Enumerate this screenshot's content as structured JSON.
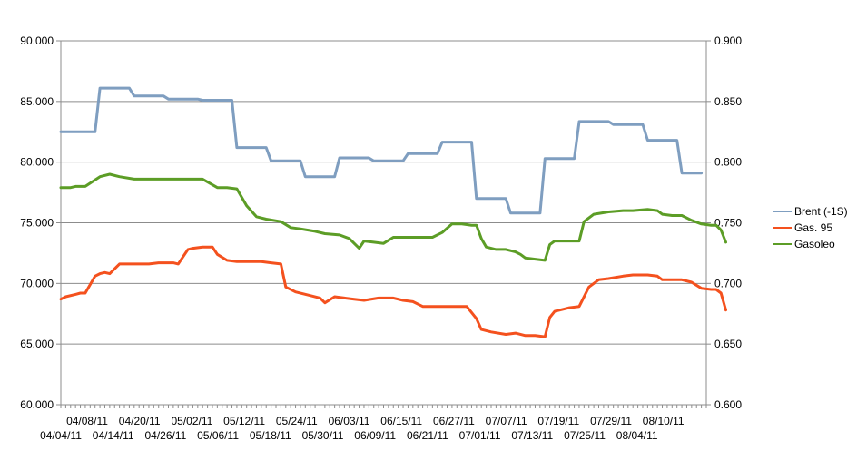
{
  "chart_data": {
    "type": "line",
    "title": "",
    "xlabel": "",
    "ylabel": "",
    "y_left": {
      "ylim": [
        60000,
        90000
      ],
      "step": 5000,
      "tick_labels": [
        "60.000",
        "65.000",
        "70.000",
        "75.000",
        "80.000",
        "85.000",
        "90.000"
      ]
    },
    "y_right": {
      "ylim": [
        0.6,
        0.9
      ],
      "step": 0.05,
      "tick_labels": [
        "0.600",
        "0.650",
        "0.700",
        "0.750",
        "0.800",
        "0.850",
        "0.900"
      ]
    },
    "grid": true,
    "legend_position": "right",
    "x_range": [
      "2011-04-04",
      "2011-08-14"
    ],
    "x_tick_labels_upper": [
      "04/08/11",
      "04/20/11",
      "05/02/11",
      "05/12/11",
      "05/24/11",
      "06/03/11",
      "06/15/11",
      "06/27/11",
      "07/07/11",
      "07/19/11",
      "07/29/11",
      "08/10/11"
    ],
    "x_tick_labels_lower": [
      "04/04/11",
      "04/14/11",
      "04/26/11",
      "05/06/11",
      "05/18/11",
      "05/30/11",
      "06/09/11",
      "06/21/11",
      "07/01/11",
      "07/13/11",
      "07/25/11",
      "08/04/11"
    ],
    "series": [
      {
        "name": "Brent (-1S)",
        "color": "#7f9ec0",
        "axis": "left",
        "points": [
          [
            "2011-04-04",
            82500
          ],
          [
            "2011-04-11",
            82500
          ],
          [
            "2011-04-12",
            86100
          ],
          [
            "2011-04-18",
            86100
          ],
          [
            "2011-04-19",
            85450
          ],
          [
            "2011-04-25",
            85450
          ],
          [
            "2011-04-26",
            85200
          ],
          [
            "2011-05-02",
            85200
          ],
          [
            "2011-05-03",
            85100
          ],
          [
            "2011-05-09",
            85100
          ],
          [
            "2011-05-10",
            81200
          ],
          [
            "2011-05-16",
            81200
          ],
          [
            "2011-05-17",
            80100
          ],
          [
            "2011-05-23",
            80100
          ],
          [
            "2011-05-24",
            78800
          ],
          [
            "2011-05-30",
            78800
          ],
          [
            "2011-05-31",
            80350
          ],
          [
            "2011-06-06",
            80350
          ],
          [
            "2011-06-07",
            80100
          ],
          [
            "2011-06-13",
            80100
          ],
          [
            "2011-06-14",
            80700
          ],
          [
            "2011-06-20",
            80700
          ],
          [
            "2011-06-21",
            81650
          ],
          [
            "2011-06-27",
            81650
          ],
          [
            "2011-06-28",
            77000
          ],
          [
            "2011-07-04",
            77000
          ],
          [
            "2011-07-05",
            75800
          ],
          [
            "2011-07-11",
            75800
          ],
          [
            "2011-07-12",
            80300
          ],
          [
            "2011-07-18",
            80300
          ],
          [
            "2011-07-19",
            83350
          ],
          [
            "2011-07-25",
            83350
          ],
          [
            "2011-07-26",
            83100
          ],
          [
            "2011-08-01",
            83100
          ],
          [
            "2011-08-02",
            81800
          ],
          [
            "2011-08-08",
            81800
          ],
          [
            "2011-08-09",
            79100
          ],
          [
            "2011-08-13",
            79100
          ]
        ]
      },
      {
        "name": "Gas. 95",
        "color": "#f4511e",
        "axis": "right",
        "points": [
          [
            "2011-04-04",
            0.687
          ],
          [
            "2011-04-05",
            0.689
          ],
          [
            "2011-04-07",
            0.691
          ],
          [
            "2011-04-08",
            0.692
          ],
          [
            "2011-04-09",
            0.692
          ],
          [
            "2011-04-11",
            0.706
          ],
          [
            "2011-04-12",
            0.708
          ],
          [
            "2011-04-13",
            0.709
          ],
          [
            "2011-04-14",
            0.708
          ],
          [
            "2011-04-16",
            0.716
          ],
          [
            "2011-04-17",
            0.716
          ],
          [
            "2011-04-22",
            0.716
          ],
          [
            "2011-04-24",
            0.717
          ],
          [
            "2011-04-27",
            0.717
          ],
          [
            "2011-04-28",
            0.716
          ],
          [
            "2011-04-30",
            0.728
          ],
          [
            "2011-05-01",
            0.729
          ],
          [
            "2011-05-03",
            0.73
          ],
          [
            "2011-05-05",
            0.73
          ],
          [
            "2011-05-06",
            0.724
          ],
          [
            "2011-05-08",
            0.719
          ],
          [
            "2011-05-10",
            0.718
          ],
          [
            "2011-05-12",
            0.718
          ],
          [
            "2011-05-15",
            0.718
          ],
          [
            "2011-05-17",
            0.717
          ],
          [
            "2011-05-19",
            0.716
          ],
          [
            "2011-05-20",
            0.697
          ],
          [
            "2011-05-22",
            0.693
          ],
          [
            "2011-05-25",
            0.69
          ],
          [
            "2011-05-27",
            0.688
          ],
          [
            "2011-05-28",
            0.684
          ],
          [
            "2011-05-30",
            0.689
          ],
          [
            "2011-06-01",
            0.688
          ],
          [
            "2011-06-03",
            0.687
          ],
          [
            "2011-06-05",
            0.686
          ],
          [
            "2011-06-08",
            0.688
          ],
          [
            "2011-06-11",
            0.688
          ],
          [
            "2011-06-13",
            0.686
          ],
          [
            "2011-06-15",
            0.685
          ],
          [
            "2011-06-17",
            0.681
          ],
          [
            "2011-06-19",
            0.681
          ],
          [
            "2011-06-21",
            0.681
          ],
          [
            "2011-06-23",
            0.681
          ],
          [
            "2011-06-26",
            0.681
          ],
          [
            "2011-06-28",
            0.671
          ],
          [
            "2011-06-29",
            0.662
          ],
          [
            "2011-07-01",
            0.66
          ],
          [
            "2011-07-04",
            0.658
          ],
          [
            "2011-07-06",
            0.659
          ],
          [
            "2011-07-08",
            0.657
          ],
          [
            "2011-07-10",
            0.657
          ],
          [
            "2011-07-12",
            0.656
          ],
          [
            "2011-07-13",
            0.672
          ],
          [
            "2011-07-14",
            0.677
          ],
          [
            "2011-07-16",
            0.679
          ],
          [
            "2011-07-17",
            0.68
          ],
          [
            "2011-07-19",
            0.681
          ],
          [
            "2011-07-21",
            0.697
          ],
          [
            "2011-07-23",
            0.703
          ],
          [
            "2011-07-25",
            0.704
          ],
          [
            "2011-07-28",
            0.706
          ],
          [
            "2011-07-30",
            0.707
          ],
          [
            "2011-08-02",
            0.707
          ],
          [
            "2011-08-04",
            0.706
          ],
          [
            "2011-08-05",
            0.703
          ],
          [
            "2011-08-07",
            0.703
          ],
          [
            "2011-08-09",
            0.703
          ],
          [
            "2011-08-11",
            0.701
          ],
          [
            "2011-08-13",
            0.696
          ],
          [
            "2011-08-15",
            0.695
          ],
          [
            "2011-08-16",
            0.695
          ],
          [
            "2011-08-17",
            0.692
          ],
          [
            "2011-08-18",
            0.678
          ]
        ]
      },
      {
        "name": "Gasoleo",
        "color": "#5c9d26",
        "axis": "right",
        "points": [
          [
            "2011-04-04",
            0.779
          ],
          [
            "2011-04-06",
            0.779
          ],
          [
            "2011-04-07",
            0.78
          ],
          [
            "2011-04-09",
            0.78
          ],
          [
            "2011-04-12",
            0.788
          ],
          [
            "2011-04-14",
            0.79
          ],
          [
            "2011-04-16",
            0.788
          ],
          [
            "2011-04-19",
            0.786
          ],
          [
            "2011-04-24",
            0.786
          ],
          [
            "2011-04-30",
            0.786
          ],
          [
            "2011-05-03",
            0.786
          ],
          [
            "2011-05-06",
            0.779
          ],
          [
            "2011-05-08",
            0.779
          ],
          [
            "2011-05-10",
            0.778
          ],
          [
            "2011-05-12",
            0.764
          ],
          [
            "2011-05-14",
            0.755
          ],
          [
            "2011-05-16",
            0.753
          ],
          [
            "2011-05-19",
            0.751
          ],
          [
            "2011-05-21",
            0.746
          ],
          [
            "2011-05-23",
            0.745
          ],
          [
            "2011-05-26",
            0.743
          ],
          [
            "2011-05-28",
            0.741
          ],
          [
            "2011-05-31",
            0.74
          ],
          [
            "2011-06-02",
            0.737
          ],
          [
            "2011-06-04",
            0.729
          ],
          [
            "2011-06-05",
            0.735
          ],
          [
            "2011-06-07",
            0.734
          ],
          [
            "2011-06-09",
            0.733
          ],
          [
            "2011-06-11",
            0.738
          ],
          [
            "2011-06-13",
            0.738
          ],
          [
            "2011-06-15",
            0.738
          ],
          [
            "2011-06-17",
            0.738
          ],
          [
            "2011-06-19",
            0.738
          ],
          [
            "2011-06-21",
            0.742
          ],
          [
            "2011-06-23",
            0.749
          ],
          [
            "2011-06-25",
            0.749
          ],
          [
            "2011-06-27",
            0.748
          ],
          [
            "2011-06-28",
            0.748
          ],
          [
            "2011-06-29",
            0.737
          ],
          [
            "2011-06-30",
            0.73
          ],
          [
            "2011-07-02",
            0.728
          ],
          [
            "2011-07-04",
            0.728
          ],
          [
            "2011-07-06",
            0.726
          ],
          [
            "2011-07-07",
            0.724
          ],
          [
            "2011-07-08",
            0.721
          ],
          [
            "2011-07-10",
            0.72
          ],
          [
            "2011-07-12",
            0.719
          ],
          [
            "2011-07-13",
            0.732
          ],
          [
            "2011-07-14",
            0.735
          ],
          [
            "2011-07-19",
            0.735
          ],
          [
            "2011-07-20",
            0.751
          ],
          [
            "2011-07-22",
            0.757
          ],
          [
            "2011-07-25",
            0.759
          ],
          [
            "2011-07-28",
            0.76
          ],
          [
            "2011-07-30",
            0.76
          ],
          [
            "2011-08-02",
            0.761
          ],
          [
            "2011-08-04",
            0.76
          ],
          [
            "2011-08-05",
            0.757
          ],
          [
            "2011-08-07",
            0.756
          ],
          [
            "2011-08-09",
            0.756
          ],
          [
            "2011-08-11",
            0.752
          ],
          [
            "2011-08-13",
            0.749
          ],
          [
            "2011-08-15",
            0.748
          ],
          [
            "2011-08-16",
            0.748
          ],
          [
            "2011-08-17",
            0.744
          ],
          [
            "2011-08-18",
            0.734
          ]
        ]
      }
    ]
  }
}
